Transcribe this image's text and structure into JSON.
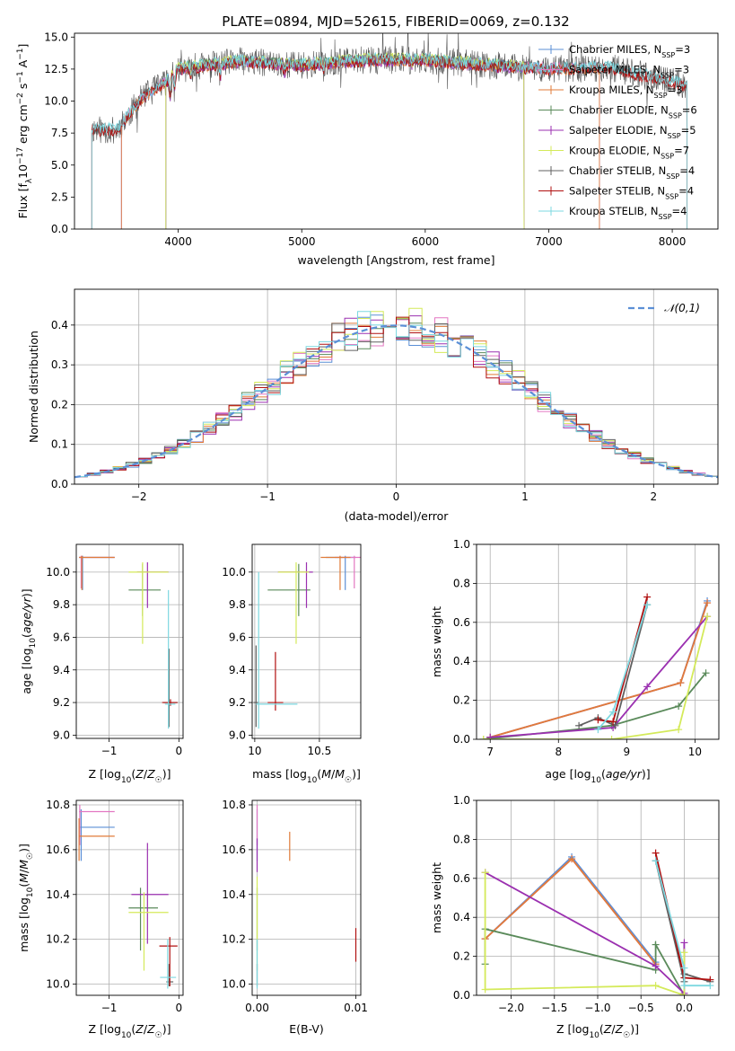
{
  "figure_title": "PLATE=0894, MJD=52615, FIBERID=0069, z=0.132",
  "colors": {
    "chabrier_miles": "#5b8fd6",
    "salpeter_miles": "#e377c2",
    "kroupa_miles": "#e07b39",
    "chabrier_elodie": "#5a8a5a",
    "salpeter_elodie": "#9b30b0",
    "kroupa_elodie": "#d4ea5a",
    "chabrier_stelib": "#606060",
    "salpeter_stelib": "#b01010",
    "kroupa_stelib": "#7dd8e0",
    "normal_curve": "#5b8fd6"
  },
  "chart_data": [
    {
      "id": "spectrum",
      "type": "line",
      "title": "PLATE=0894, MJD=52615, FIBERID=0069, z=0.132",
      "xlabel": "wavelength [Angstrom, rest frame]",
      "ylabel_parts": [
        "Flux [f",
        "λ",
        "10",
        "−17",
        " erg cm",
        "−2",
        " s",
        "−1",
        " A",
        "−1",
        "]"
      ],
      "xlim": [
        3160,
        8370
      ],
      "ylim": [
        0,
        15.3
      ],
      "xticks": [
        4000,
        5000,
        6000,
        7000,
        8000
      ],
      "yticks": [
        0.0,
        2.5,
        5.0,
        7.5,
        10.0,
        12.5,
        15.0
      ],
      "legend_position": "top-right",
      "legend": [
        {
          "label": "Chabrier MILES, N",
          "sub": "SSP",
          "suffix": "=3",
          "color_key": "chabrier_miles"
        },
        {
          "label": "Salpeter MILES, N",
          "sub": "SSP",
          "suffix": "=3",
          "color_key": "salpeter_miles"
        },
        {
          "label": "Kroupa MILES, N",
          "sub": "SSP",
          "suffix": "=3",
          "color_key": "kroupa_miles"
        },
        {
          "label": "Chabrier ELODIE, N",
          "sub": "SSP",
          "suffix": "=6",
          "color_key": "chabrier_elodie"
        },
        {
          "label": "Salpeter ELODIE, N",
          "sub": "SSP",
          "suffix": "=5",
          "color_key": "salpeter_elodie"
        },
        {
          "label": "Kroupa ELODIE, N",
          "sub": "SSP",
          "suffix": "=7",
          "color_key": "kroupa_elodie"
        },
        {
          "label": "Chabrier STELIB, N",
          "sub": "SSP",
          "suffix": "=4",
          "color_key": "chabrier_stelib"
        },
        {
          "label": "Salpeter STELIB, N",
          "sub": "SSP",
          "suffix": "=4",
          "color_key": "salpeter_stelib"
        },
        {
          "label": "Kroupa STELIB, N",
          "sub": "SSP",
          "suffix": "=4",
          "color_key": "kroupa_stelib"
        }
      ],
      "data_wavelength_range": [
        3300,
        8120
      ],
      "model_ranges": {
        "miles": [
          3540,
          7410
        ],
        "elodie": [
          3900,
          6800
        ],
        "stelib": [
          3300,
          8120
        ]
      },
      "continuum_points": [
        [
          3300,
          7.8
        ],
        [
          3500,
          7.7
        ],
        [
          3700,
          10.2
        ],
        [
          3900,
          11.5
        ],
        [
          4000,
          12.5
        ],
        [
          4500,
          13.1
        ],
        [
          5000,
          12.8
        ],
        [
          5500,
          13.2
        ],
        [
          6000,
          13.2
        ],
        [
          6500,
          12.8
        ],
        [
          7000,
          12.5
        ],
        [
          7500,
          12.6
        ],
        [
          8000,
          11.5
        ],
        [
          8120,
          11.2
        ]
      ]
    },
    {
      "id": "residuals",
      "type": "histogram",
      "xlabel": "(data-model)/error",
      "ylabel": "Normed distribution",
      "xlim": [
        -2.5,
        2.5
      ],
      "ylim": [
        0,
        0.49
      ],
      "xticks": [
        -2,
        -1,
        0,
        1,
        2
      ],
      "yticks": [
        0.0,
        0.1,
        0.2,
        0.3,
        0.4
      ],
      "grid": true,
      "legend_position": "top-right",
      "legend": [
        {
          "label": "𝒩(0,1)",
          "color_key": "normal_curve",
          "style": "dashed"
        }
      ],
      "bin_width": 0.1,
      "noise_seed": 7
    },
    {
      "id": "age_vs_Z",
      "type": "errorbar",
      "xlabel": "Z [log10(Z/Z☉)]",
      "ylabel": "age  [log10(age/yr)]",
      "xlim": [
        -1.47,
        0.06
      ],
      "ylim": [
        8.98,
        10.17
      ],
      "xticks": [
        -1,
        0
      ],
      "yticks": [
        9.0,
        9.2,
        9.4,
        9.6,
        9.8,
        10.0
      ],
      "grid": true,
      "points": [
        {
          "model": "chabrier_miles",
          "x": -1.38,
          "xlo": -1.43,
          "xhi": -0.92,
          "y": 10.09,
          "ylo": 9.89,
          "yhi": 10.1
        },
        {
          "model": "salpeter_miles",
          "x": -1.4,
          "xlo": -1.43,
          "xhi": -0.92,
          "y": 10.09,
          "ylo": 9.9,
          "yhi": 10.1
        },
        {
          "model": "kroupa_miles",
          "x": -1.39,
          "xlo": -1.43,
          "xhi": -0.92,
          "y": 10.09,
          "ylo": 9.89,
          "yhi": 10.1
        },
        {
          "model": "chabrier_elodie",
          "x": -0.52,
          "xlo": -0.72,
          "xhi": -0.26,
          "y": 9.89,
          "ylo": 9.73,
          "yhi": 10.05
        },
        {
          "model": "salpeter_elodie",
          "x": -0.45,
          "xlo": -0.6,
          "xhi": -0.15,
          "y": 10.0,
          "ylo": 9.78,
          "yhi": 10.06
        },
        {
          "model": "kroupa_elodie",
          "x": -0.52,
          "xlo": -0.72,
          "xhi": -0.15,
          "y": 10.0,
          "ylo": 9.56,
          "yhi": 10.06
        },
        {
          "model": "chabrier_stelib",
          "x": -0.14,
          "xlo": -0.22,
          "xhi": -0.02,
          "y": 9.2,
          "ylo": 9.05,
          "yhi": 9.53
        },
        {
          "model": "salpeter_stelib",
          "x": -0.12,
          "xlo": -0.24,
          "xhi": -0.02,
          "y": 9.2,
          "ylo": 9.18,
          "yhi": 9.22
        },
        {
          "model": "kroupa_stelib",
          "x": -0.15,
          "xlo": -0.2,
          "xhi": -0.05,
          "y": 9.19,
          "ylo": 9.04,
          "yhi": 9.89
        }
      ]
    },
    {
      "id": "age_vs_mass",
      "type": "errorbar",
      "xlabel": "mass [log10(M/M☉)]",
      "ylabel": "",
      "xlim": [
        9.98,
        10.82
      ],
      "ylim": [
        8.98,
        10.17
      ],
      "xticks": [
        10.0,
        10.5
      ],
      "yticks": [
        9.0,
        9.2,
        9.4,
        9.6,
        9.8,
        10.0
      ],
      "grid": true,
      "points": [
        {
          "model": "chabrier_miles",
          "x": 10.7,
          "xlo": 10.55,
          "xhi": 10.78,
          "y": 10.09,
          "ylo": 9.89,
          "yhi": 10.1
        },
        {
          "model": "salpeter_miles",
          "x": 10.77,
          "xlo": 10.62,
          "xhi": 10.82,
          "y": 10.09,
          "ylo": 9.9,
          "yhi": 10.1
        },
        {
          "model": "kroupa_miles",
          "x": 10.66,
          "xlo": 10.51,
          "xhi": 10.74,
          "y": 10.09,
          "ylo": 9.89,
          "yhi": 10.1
        },
        {
          "model": "chabrier_elodie",
          "x": 10.34,
          "xlo": 10.1,
          "xhi": 10.43,
          "y": 9.89,
          "ylo": 9.73,
          "yhi": 10.05
        },
        {
          "model": "salpeter_elodie",
          "x": 10.4,
          "xlo": 10.18,
          "xhi": 10.45,
          "y": 10.0,
          "ylo": 9.78,
          "yhi": 10.06
        },
        {
          "model": "kroupa_elodie",
          "x": 10.32,
          "xlo": 10.18,
          "xhi": 10.42,
          "y": 10.0,
          "ylo": 9.56,
          "yhi": 10.06
        },
        {
          "model": "chabrier_stelib",
          "x": 10.01,
          "xlo": 9.99,
          "xhi": 10.03,
          "y": 9.2,
          "ylo": 9.05,
          "yhi": 9.55
        },
        {
          "model": "salpeter_stelib",
          "x": 10.16,
          "xlo": 10.1,
          "xhi": 10.22,
          "y": 9.2,
          "ylo": 9.15,
          "yhi": 9.51
        },
        {
          "model": "kroupa_stelib",
          "x": 10.03,
          "xlo": 10.01,
          "xhi": 10.33,
          "y": 9.19,
          "ylo": 9.04,
          "yhi": 10.0
        }
      ]
    },
    {
      "id": "weight_vs_age",
      "type": "line",
      "xlabel": "age  [log10(age/yr)]",
      "ylabel": "mass weight",
      "xlim": [
        6.8,
        10.35
      ],
      "ylim": [
        0,
        1.0
      ],
      "xticks": [
        7,
        8,
        9,
        10
      ],
      "yticks": [
        0.0,
        0.2,
        0.4,
        0.6,
        0.8,
        1.0
      ],
      "grid": true,
      "series": [
        {
          "model": "chabrier_miles",
          "x": [
            7.0,
            9.79,
            10.18
          ],
          "y": [
            0.01,
            0.29,
            0.71
          ]
        },
        {
          "model": "salpeter_miles",
          "x": [
            7.0,
            9.79,
            10.18
          ],
          "y": [
            0.01,
            0.29,
            0.7
          ]
        },
        {
          "model": "kroupa_miles",
          "x": [
            7.0,
            9.79,
            10.18
          ],
          "y": [
            0.01,
            0.29,
            0.7
          ]
        },
        {
          "model": "chabrier_elodie",
          "x": [
            6.9,
            8.78,
            9.76,
            10.16
          ],
          "y": [
            0.0,
            0.07,
            0.17,
            0.34
          ]
        },
        {
          "model": "salpeter_elodie",
          "x": [
            7.0,
            8.8,
            9.3,
            10.18
          ],
          "y": [
            0.01,
            0.06,
            0.27,
            0.63
          ]
        },
        {
          "model": "kroupa_elodie",
          "x": [
            6.9,
            8.78,
            9.76,
            10.18
          ],
          "y": [
            0.0,
            0.0,
            0.05,
            0.63
          ]
        },
        {
          "model": "chabrier_stelib",
          "x": [
            8.3,
            8.58,
            8.83,
            9.3
          ],
          "y": [
            0.07,
            0.11,
            0.07,
            0.69
          ]
        },
        {
          "model": "salpeter_stelib",
          "x": [
            8.58,
            8.8,
            9.3
          ],
          "y": [
            0.1,
            0.09,
            0.73
          ]
        },
        {
          "model": "kroupa_stelib",
          "x": [
            8.58,
            8.8,
            9.3
          ],
          "y": [
            0.05,
            0.14,
            0.69
          ]
        }
      ]
    },
    {
      "id": "mass_vs_Z",
      "type": "errorbar",
      "xlabel": "Z [log10(Z/Z☉)]",
      "ylabel": "mass [log10(M/M☉)]",
      "xlim": [
        -1.47,
        0.06
      ],
      "ylim": [
        9.95,
        10.82
      ],
      "xticks": [
        -1,
        0
      ],
      "yticks": [
        10.0,
        10.2,
        10.4,
        10.6,
        10.8
      ],
      "grid": true,
      "points": [
        {
          "model": "chabrier_miles",
          "x": -1.4,
          "xlo": -1.43,
          "xhi": -0.92,
          "y": 10.7,
          "ylo": 10.55,
          "yhi": 10.78
        },
        {
          "model": "salpeter_miles",
          "x": -1.42,
          "xlo": -1.43,
          "xhi": -0.92,
          "y": 10.77,
          "ylo": 10.62,
          "yhi": 10.8
        },
        {
          "model": "kroupa_miles",
          "x": -1.43,
          "xlo": -1.43,
          "xhi": -0.92,
          "y": 10.66,
          "ylo": 10.55,
          "yhi": 10.74
        },
        {
          "model": "chabrier_elodie",
          "x": -0.55,
          "xlo": -0.72,
          "xhi": -0.3,
          "y": 10.34,
          "ylo": 10.15,
          "yhi": 10.43
        },
        {
          "model": "salpeter_elodie",
          "x": -0.45,
          "xlo": -0.68,
          "xhi": -0.15,
          "y": 10.4,
          "ylo": 10.18,
          "yhi": 10.63
        },
        {
          "model": "kroupa_elodie",
          "x": -0.5,
          "xlo": -0.72,
          "xhi": -0.15,
          "y": 10.32,
          "ylo": 10.06,
          "yhi": 10.41
        },
        {
          "model": "chabrier_stelib",
          "x": -0.14,
          "xlo": -0.18,
          "xhi": -0.08,
          "y": 10.01,
          "ylo": 9.99,
          "yhi": 10.09
        },
        {
          "model": "salpeter_stelib",
          "x": -0.13,
          "xlo": -0.28,
          "xhi": -0.02,
          "y": 10.17,
          "ylo": 9.99,
          "yhi": 10.21
        },
        {
          "model": "kroupa_stelib",
          "x": -0.16,
          "xlo": -0.27,
          "xhi": -0.04,
          "y": 10.03,
          "ylo": 9.98,
          "yhi": 10.2
        }
      ]
    },
    {
      "id": "mass_vs_ebv",
      "type": "errorbar",
      "xlabel": "E(B-V)",
      "ylabel": "",
      "xlim": [
        -0.0005,
        0.0105
      ],
      "ylim": [
        9.95,
        10.82
      ],
      "xticks": [
        0.0,
        0.01
      ],
      "xticklabels": [
        "0.00",
        "0.01"
      ],
      "yticks": [
        10.0,
        10.2,
        10.4,
        10.6,
        10.8
      ],
      "grid": true,
      "points": [
        {
          "model": "chabrier_miles",
          "x": 0.0,
          "xlo": 0.0,
          "xhi": 0.0,
          "y": 10.7,
          "ylo": 10.55,
          "yhi": 10.78
        },
        {
          "model": "salpeter_miles",
          "x": 0.0,
          "xlo": 0.0,
          "xhi": 0.0,
          "y": 10.77,
          "ylo": 10.62,
          "yhi": 10.8
        },
        {
          "model": "kroupa_miles",
          "x": 0.0033,
          "xlo": 0.0033,
          "xhi": 0.0033,
          "y": 10.62,
          "ylo": 10.55,
          "yhi": 10.68
        },
        {
          "model": "chabrier_elodie",
          "x": 0.0,
          "xlo": 0.0,
          "xhi": 0.0,
          "y": 10.34,
          "ylo": 10.15,
          "yhi": 10.43
        },
        {
          "model": "salpeter_elodie",
          "x": 0.0,
          "xlo": 0.0,
          "xhi": 0.0,
          "y": 10.58,
          "ylo": 10.5,
          "yhi": 10.65
        },
        {
          "model": "kroupa_elodie",
          "x": 0.0,
          "xlo": 0.0,
          "xhi": 0.0,
          "y": 10.32,
          "ylo": 10.06,
          "yhi": 10.48
        },
        {
          "model": "chabrier_stelib",
          "x": 0.0,
          "xlo": 0.0,
          "xhi": 0.0,
          "y": 10.01,
          "ylo": 9.99,
          "yhi": 10.09
        },
        {
          "model": "salpeter_stelib",
          "x": 0.01,
          "xlo": 0.01,
          "xhi": 0.01,
          "y": 10.17,
          "ylo": 10.1,
          "yhi": 10.25
        },
        {
          "model": "kroupa_stelib",
          "x": 0.0,
          "xlo": 0.0,
          "xhi": 0.0,
          "y": 10.03,
          "ylo": 9.98,
          "yhi": 10.2
        }
      ]
    },
    {
      "id": "weight_vs_Z",
      "type": "line",
      "xlabel": "Z [log10(Z/Z☉)]",
      "ylabel": "mass weight",
      "xlim": [
        -2.4,
        0.4
      ],
      "ylim": [
        0,
        1.0
      ],
      "xticks": [
        -2.0,
        -1.5,
        -1.0,
        -0.5,
        0.0
      ],
      "xticklabels": [
        "−2.0",
        "−1.5",
        "−1.0",
        "−0.5",
        "0.0"
      ],
      "yticks": [
        0.0,
        0.2,
        0.4,
        0.6,
        0.8,
        1.0
      ],
      "grid": true,
      "series": [
        {
          "model": "chabrier_miles",
          "x": [
            -2.3,
            -1.3,
            -0.33
          ],
          "y": [
            0.29,
            0.71,
            0.17
          ]
        },
        {
          "model": "salpeter_miles",
          "x": [
            -2.3,
            -1.3,
            -0.33
          ],
          "y": [
            0.29,
            0.7,
            0.16
          ]
        },
        {
          "model": "kroupa_miles",
          "x": [
            -2.3,
            -1.3,
            -0.33
          ],
          "y": [
            0.29,
            0.7,
            0.16
          ]
        },
        {
          "model": "chabrier_elodie",
          "x": [
            -2.3,
            -2.3,
            -0.33,
            -0.33,
            0.0
          ],
          "y": [
            0.16,
            0.34,
            0.13,
            0.26,
            0.0
          ]
        },
        {
          "model": "salpeter_elodie",
          "x": [
            -2.3,
            -0.33,
            0.0,
            0.0
          ],
          "y": [
            0.63,
            0.15,
            0.01,
            0.27
          ]
        },
        {
          "model": "kroupa_elodie",
          "x": [
            -2.3,
            -2.3,
            -0.33,
            0.0,
            0.0
          ],
          "y": [
            0.63,
            0.03,
            0.05,
            0.0,
            0.22
          ]
        },
        {
          "model": "chabrier_stelib",
          "x": [
            -0.33,
            0.0,
            0.0,
            0.3
          ],
          "y": [
            0.69,
            0.07,
            0.11,
            0.07
          ]
        },
        {
          "model": "salpeter_stelib",
          "x": [
            -0.33,
            0.0,
            0.3
          ],
          "y": [
            0.73,
            0.09,
            0.08
          ]
        },
        {
          "model": "kroupa_stelib",
          "x": [
            -0.33,
            0.0,
            0.0,
            0.3
          ],
          "y": [
            0.69,
            0.14,
            0.05,
            0.05
          ]
        }
      ]
    }
  ]
}
